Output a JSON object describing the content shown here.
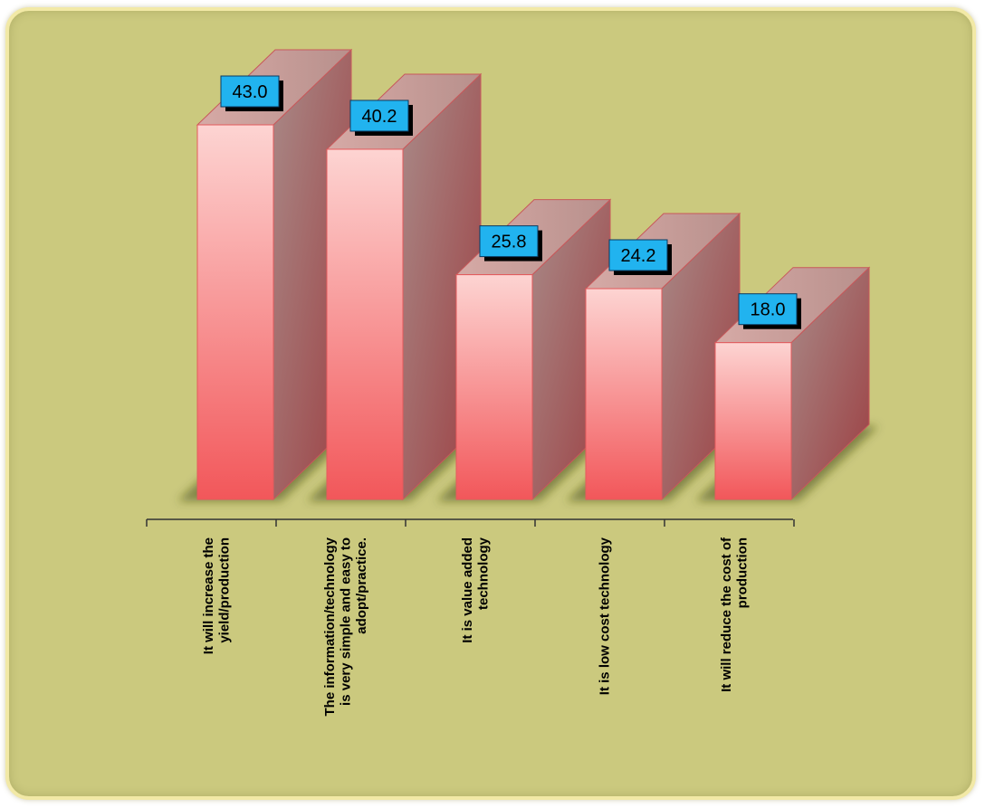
{
  "chart_data": {
    "type": "bar",
    "title": "",
    "xlabel": "",
    "ylabel": "",
    "ylim": [
      0,
      43
    ],
    "grid": false,
    "categories": [
      [
        "It will increase the",
        "yield/production"
      ],
      [
        "The information/technology",
        "is very simple and easy to",
        "adopt/practice."
      ],
      [
        "It is value added",
        "technology"
      ],
      [
        "It is low cost technology"
      ],
      [
        "It will reduce the cost of",
        "production"
      ]
    ],
    "values": [
      43.0,
      40.2,
      25.8,
      24.2,
      18.0
    ],
    "data_labels": [
      "43.0",
      "40.2",
      "25.8",
      "24.2",
      "18.0"
    ]
  },
  "colors": {
    "background": "#cbc97e",
    "bar_front_top": "#fdd4d2",
    "bar_front_bottom": "#f2575a",
    "bar_side": "#a05f60",
    "bar_top": "#c99b98",
    "label_box": "#21b3ef"
  }
}
